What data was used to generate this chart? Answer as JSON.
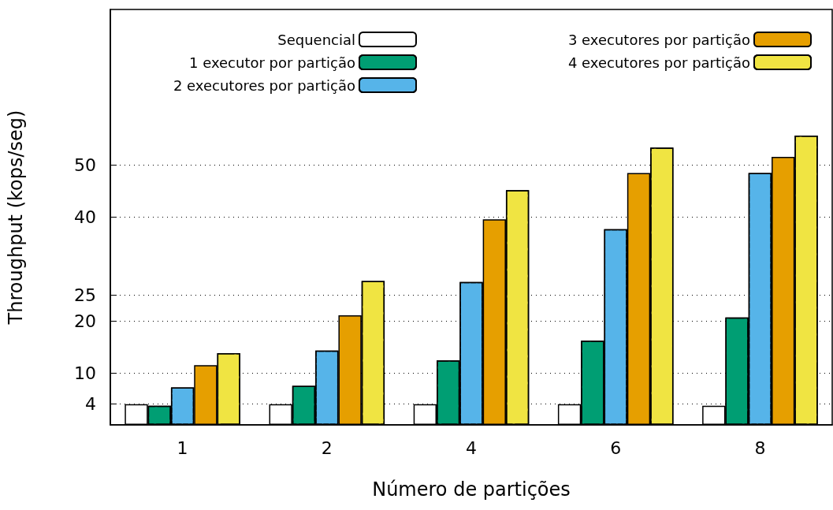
{
  "chart_data": {
    "type": "bar",
    "xlabel": "Número de partições",
    "ylabel": "Throughput (kops/seg)",
    "categories": [
      "1",
      "2",
      "4",
      "6",
      "8"
    ],
    "series": [
      {
        "name": "Sequencial",
        "color": "#ffffff",
        "values": [
          4,
          4,
          4,
          4,
          3.7
        ]
      },
      {
        "name": "1 executor por partição",
        "color": "#009e73",
        "values": [
          3.7,
          7.5,
          12.4,
          16.2,
          20.7
        ]
      },
      {
        "name": "2 executores por partição",
        "color": "#56b4e9",
        "values": [
          7.2,
          14.3,
          27.5,
          37.7,
          48.5
        ]
      },
      {
        "name": "3 executores por partição",
        "color": "#e69f00",
        "values": [
          11.5,
          21.1,
          39.6,
          48.5,
          51.6
        ]
      },
      {
        "name": "4 executores por partição",
        "color": "#f0e442",
        "values": [
          13.8,
          27.7,
          45.2,
          53.4,
          55.7
        ]
      }
    ],
    "ylim": [
      0,
      80
    ],
    "yticks": [
      4,
      10,
      20,
      25,
      40,
      50
    ],
    "grid": "y",
    "legend": "top"
  }
}
